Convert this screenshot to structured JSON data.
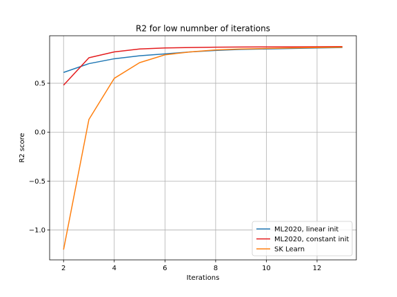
{
  "chart_data": {
    "type": "line",
    "title": "R2 for low numnber of iterations",
    "xlabel": "Iterations",
    "ylabel": "R2 score",
    "xlim": [
      1.45,
      13.55
    ],
    "ylim": [
      -1.305,
      0.985
    ],
    "x_ticks": [
      2,
      4,
      6,
      8,
      10,
      12
    ],
    "y_ticks": [
      -1.0,
      -0.5,
      0.0,
      0.5
    ],
    "y_tick_labels": [
      "−1.0",
      "−0.5",
      "0.0",
      "0.5"
    ],
    "grid": true,
    "legend_position": "lower-right",
    "x": [
      2,
      3,
      4,
      5,
      6,
      7,
      8,
      9,
      10,
      11,
      12,
      13
    ],
    "series": [
      {
        "name": "ML2020, linear init",
        "color": "#1f77b4",
        "values": [
          0.61,
          0.7,
          0.75,
          0.78,
          0.8,
          0.82,
          0.835,
          0.845,
          0.85,
          0.855,
          0.86,
          0.865
        ]
      },
      {
        "name": "ML2020, constant init",
        "color": "#e41a1c",
        "values": [
          0.48,
          0.76,
          0.82,
          0.85,
          0.86,
          0.865,
          0.868,
          0.87,
          0.871,
          0.872,
          0.873,
          0.874
        ]
      },
      {
        "name": "SK Learn",
        "color": "#ff7f0e",
        "values": [
          -1.2,
          0.13,
          0.55,
          0.71,
          0.79,
          0.82,
          0.84,
          0.85,
          0.855,
          0.86,
          0.865,
          0.868
        ]
      }
    ]
  }
}
